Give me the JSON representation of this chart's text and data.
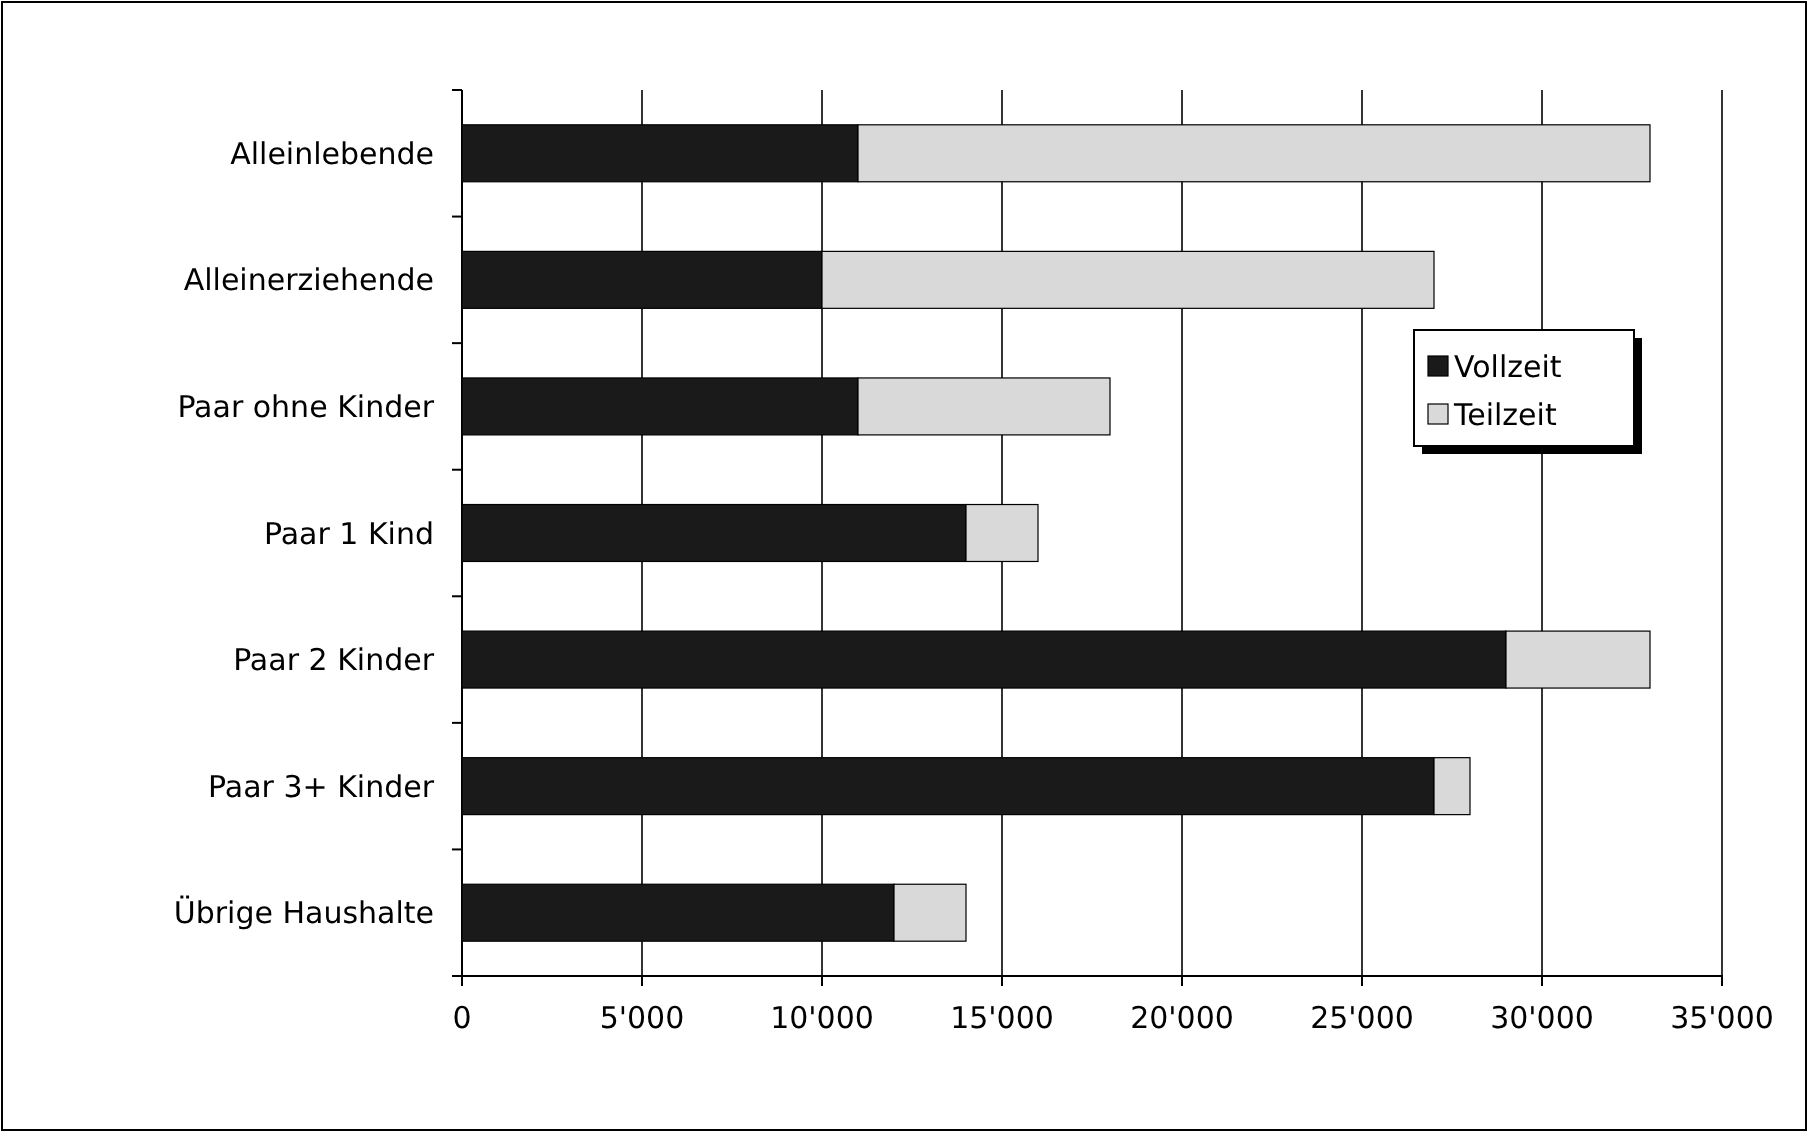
{
  "chart_data": {
    "type": "bar",
    "orientation": "horizontal",
    "stacked": true,
    "categories": [
      "Alleinlebende",
      "Alleinerziehende",
      "Paar ohne Kinder",
      "Paar 1 Kind",
      "Paar 2 Kinder",
      "Paar 3+ Kinder",
      "Übrige Haushalte"
    ],
    "series": [
      {
        "name": "Vollzeit",
        "color": "#1a1a1a",
        "values": [
          11000,
          10000,
          11000,
          14000,
          29000,
          27000,
          12000
        ]
      },
      {
        "name": "Teilzeit",
        "color": "#d9d9d9",
        "values": [
          22000,
          17000,
          7000,
          2000,
          4000,
          1000,
          2000
        ]
      }
    ],
    "xlim": [
      0,
      35000
    ],
    "xticks": [
      {
        "value": 0,
        "label": "0"
      },
      {
        "value": 5000,
        "label": "5'000"
      },
      {
        "value": 10000,
        "label": "10'000"
      },
      {
        "value": 15000,
        "label": "15'000"
      },
      {
        "value": 20000,
        "label": "20'000"
      },
      {
        "value": 25000,
        "label": "25'000"
      },
      {
        "value": 30000,
        "label": "30'000"
      },
      {
        "value": 35000,
        "label": "35'000"
      }
    ],
    "grid": "x",
    "legend": "right"
  }
}
